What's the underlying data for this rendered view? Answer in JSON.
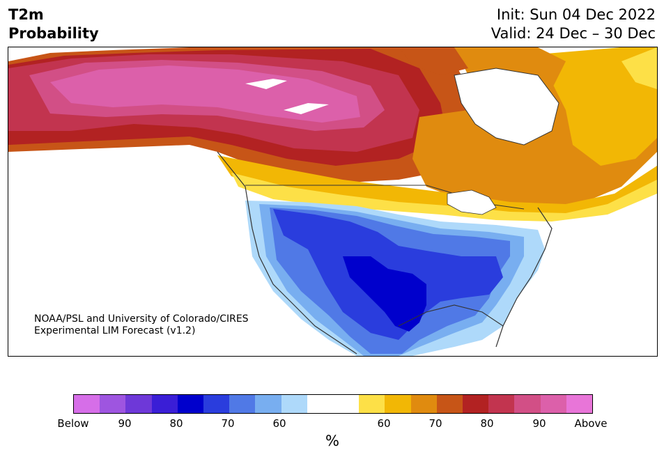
{
  "header": {
    "title_line1": "T2m",
    "title_line2": "Probability",
    "init": "Init: Sun 04 Dec 2022",
    "valid": "Valid: 24 Dec – 30 Dec"
  },
  "credit": {
    "line1": "NOAA/PSL and University of Colorado/CIRES",
    "line2": "Experimental LIM Forecast (v1.2)"
  },
  "colorbar": {
    "colors": [
      "#d66ee8",
      "#9e55e0",
      "#6e38d8",
      "#3a1ed6",
      "#0000cc",
      "#2a3ddd",
      "#5079e6",
      "#78aef0",
      "#aed9fa",
      "#ffffff",
      "#ffffff",
      "#fde047",
      "#f2b705",
      "#e08b0f",
      "#c75517",
      "#b22222",
      "#c2344f",
      "#d24f86",
      "#dc60aa",
      "#e875d8"
    ],
    "tick_labels": [
      "Below",
      "90",
      "80",
      "70",
      "60",
      "60",
      "70",
      "80",
      "90",
      "Above"
    ],
    "unit": "%"
  },
  "map": {
    "region": "North America",
    "colors": {
      "above_strong": "#dc60aa",
      "above_90": "#d24f86",
      "above_85": "#c2344f",
      "above_80": "#b22222",
      "above_75": "#c75517",
      "above_70": "#e08b0f",
      "above_65": "#f2b705",
      "above_60": "#fde047",
      "below_60": "#aed9fa",
      "below_65": "#78aef0",
      "below_70": "#5079e6",
      "below_75": "#2a3ddd",
      "below_80": "#0000cc"
    }
  }
}
